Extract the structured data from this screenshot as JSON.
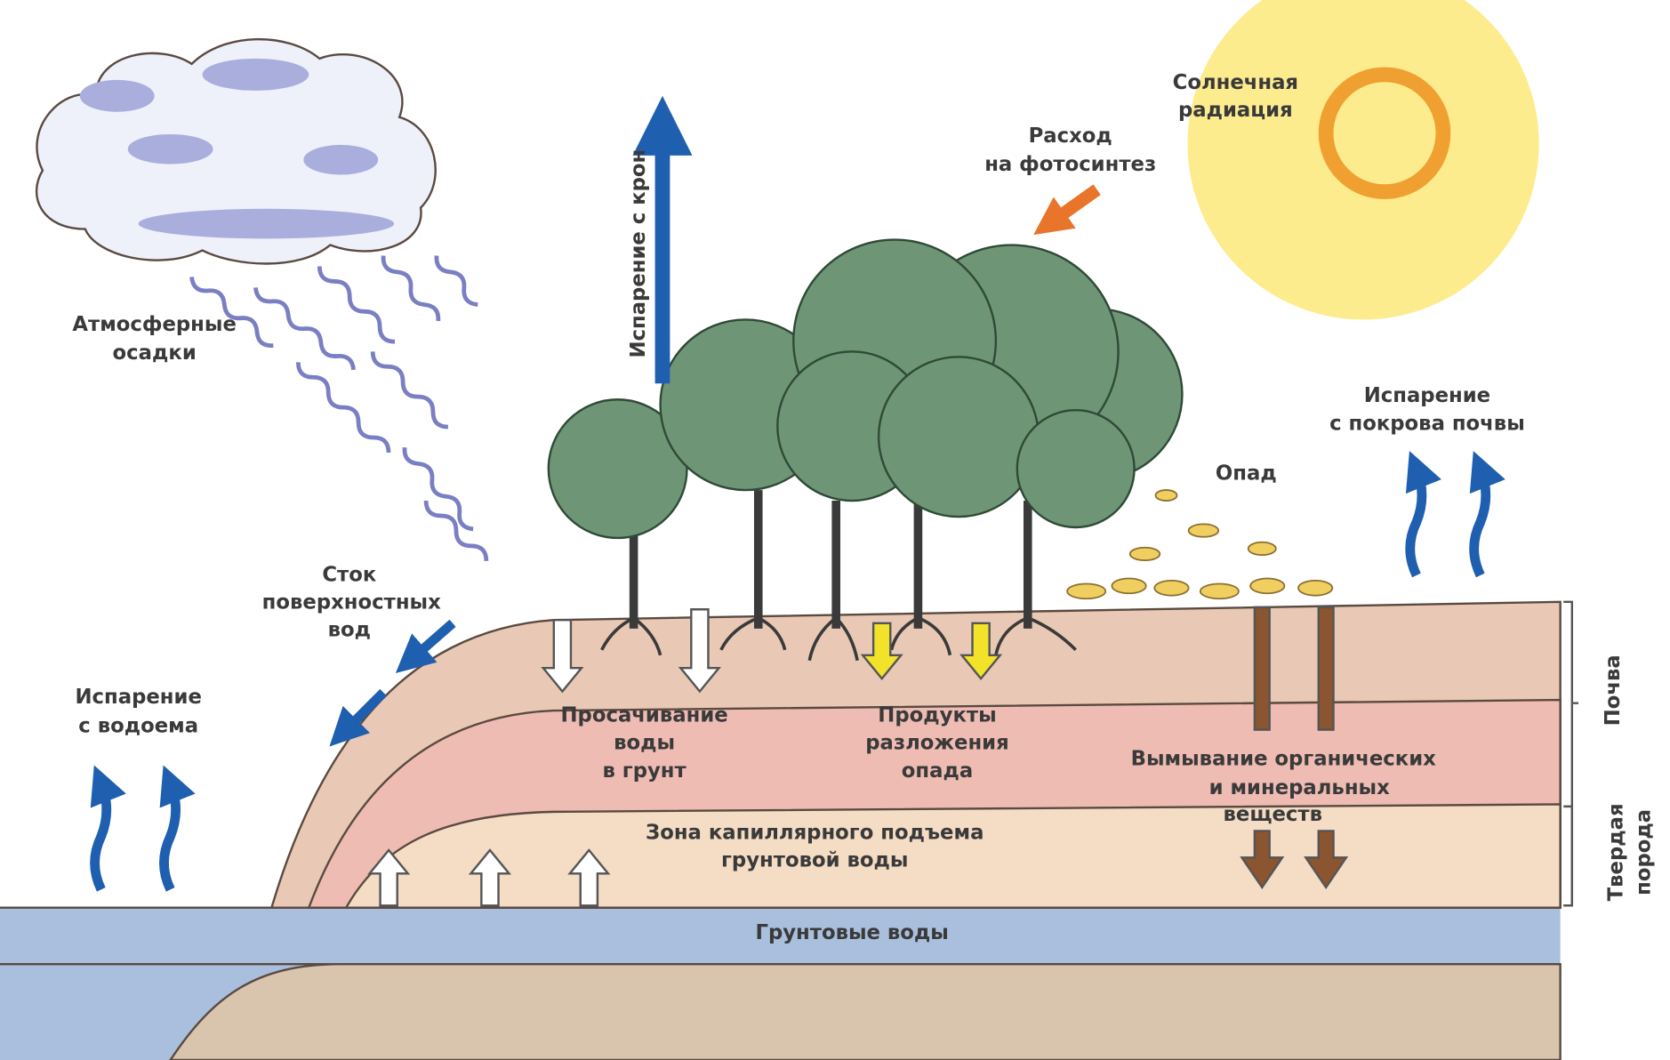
{
  "labels": {
    "precipitation": [
      "Атмосферные",
      "осадки"
    ],
    "crown_evaporation": [
      "Испарение с крон"
    ],
    "solar_radiation": [
      "Солнечная",
      "радиация"
    ],
    "photosynthesis": [
      "Расход",
      "на фотосинтез"
    ],
    "soil_evaporation": [
      "Испарение",
      "с покрова почвы"
    ],
    "litter": [
      "Опад"
    ],
    "runoff": [
      "Сток",
      "поверхностных",
      "вод"
    ],
    "water_evaporation": [
      "Испарение",
      "с водоема"
    ],
    "seepage": [
      "Просачивание",
      "воды",
      "в грунт"
    ],
    "decomposition": [
      "Продукты",
      "разложения",
      "опада"
    ],
    "leaching": [
      "Вымывание органических",
      "и минеральных",
      "веществ"
    ],
    "capillary": [
      "Зона капиллярного подъема",
      "грунтовой воды"
    ],
    "groundwater": [
      "Грунтовые воды"
    ],
    "soil": [
      "Почва"
    ],
    "bedrock": [
      "Твердая",
      "порода"
    ]
  }
}
